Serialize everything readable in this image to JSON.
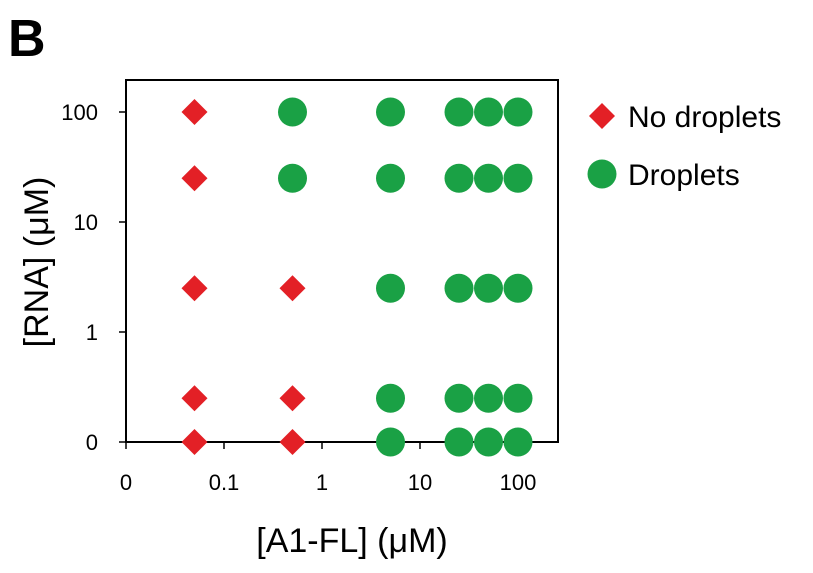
{
  "panel_label": "B",
  "chart_data": {
    "type": "scatter",
    "xlabel": "[A1-FL] (μM)",
    "ylabel": "[RNA] (μM)",
    "x_scale": "log",
    "y_scale": "log",
    "x_ticks": [
      {
        "label": "0",
        "value": 0.01
      },
      {
        "label": "0.1",
        "value": 0.1
      },
      {
        "label": "1",
        "value": 1
      },
      {
        "label": "10",
        "value": 10
      },
      {
        "label": "100",
        "value": 100
      }
    ],
    "y_ticks": [
      {
        "label": "0",
        "value": 0.1
      },
      {
        "label": "1",
        "value": 1
      },
      {
        "label": "10",
        "value": 10
      },
      {
        "label": "100",
        "value": 100
      }
    ],
    "xlim": [
      0.01,
      300
    ],
    "ylim": [
      0.1,
      200
    ],
    "grid": false,
    "legend_position": "right",
    "series": [
      {
        "name": "No droplets",
        "marker": "diamond",
        "color": "#e32026",
        "points": [
          {
            "x": 0.05,
            "y": 100
          },
          {
            "x": 0.05,
            "y": 25
          },
          {
            "x": 0.05,
            "y": 2.5
          },
          {
            "x": 0.05,
            "y": 0.25
          },
          {
            "x": 0.05,
            "y": 0.1
          },
          {
            "x": 0.5,
            "y": 2.5
          },
          {
            "x": 0.5,
            "y": 0.25
          },
          {
            "x": 0.5,
            "y": 0.1
          }
        ]
      },
      {
        "name": "Droplets",
        "marker": "circle",
        "color": "#1aa145",
        "points": [
          {
            "x": 0.5,
            "y": 100
          },
          {
            "x": 0.5,
            "y": 25
          },
          {
            "x": 5,
            "y": 100
          },
          {
            "x": 5,
            "y": 25
          },
          {
            "x": 5,
            "y": 2.5
          },
          {
            "x": 5,
            "y": 0.25
          },
          {
            "x": 5,
            "y": 0.1
          },
          {
            "x": 25,
            "y": 100
          },
          {
            "x": 25,
            "y": 25
          },
          {
            "x": 25,
            "y": 2.5
          },
          {
            "x": 25,
            "y": 0.25
          },
          {
            "x": 25,
            "y": 0.1
          },
          {
            "x": 50,
            "y": 100
          },
          {
            "x": 50,
            "y": 25
          },
          {
            "x": 50,
            "y": 2.5
          },
          {
            "x": 50,
            "y": 0.25
          },
          {
            "x": 50,
            "y": 0.1
          },
          {
            "x": 100,
            "y": 100
          },
          {
            "x": 100,
            "y": 25
          },
          {
            "x": 100,
            "y": 2.5
          },
          {
            "x": 100,
            "y": 0.25
          },
          {
            "x": 100,
            "y": 0.1
          }
        ]
      }
    ]
  }
}
